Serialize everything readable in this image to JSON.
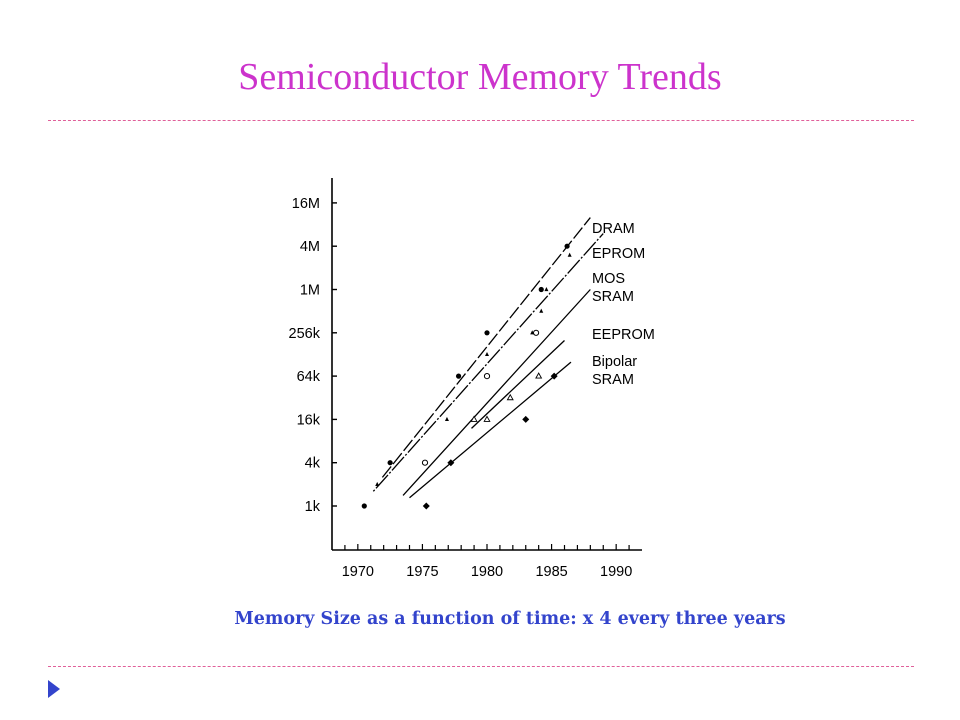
{
  "slide": {
    "title": "Semiconductor Memory Trends",
    "caption": "Memory Size as a function of time: x 4 every three years",
    "accent_color": "#cc33cc",
    "caption_color": "#3344cc",
    "bullet_icon": "triangle-right-icon"
  },
  "chart_data": {
    "type": "scatter",
    "title": "",
    "xlabel": "",
    "ylabel": "",
    "xlim": [
      1968,
      1992
    ],
    "y_scale": "log4",
    "x_ticks": [
      "1970",
      "1975",
      "1980",
      "1985",
      "1990"
    ],
    "y_ticks": [
      "1k",
      "4k",
      "16k",
      "64k",
      "256k",
      "1M",
      "4M",
      "16M"
    ],
    "series": [
      {
        "name": "DRAM",
        "marker": "filled-circle",
        "points": [
          {
            "x": 1970.5,
            "y": "1k"
          },
          {
            "x": 1972.5,
            "y": "4k"
          },
          {
            "x": 1977.8,
            "y": "64k"
          },
          {
            "x": 1980.0,
            "y": "256k"
          },
          {
            "x": 1984.2,
            "y": "1M"
          },
          {
            "x": 1986.2,
            "y": "4M"
          }
        ],
        "trend": [
          {
            "x": 1971.9,
            "y": "2.5k"
          },
          {
            "x": 1988.0,
            "y": "10M"
          }
        ]
      },
      {
        "name": "EPROM",
        "marker": "small-triangle",
        "points": [
          {
            "x": 1971.5,
            "y": "2k"
          },
          {
            "x": 1976.9,
            "y": "16k"
          },
          {
            "x": 1980.0,
            "y": "128k"
          },
          {
            "x": 1983.5,
            "y": "256k"
          },
          {
            "x": 1984.2,
            "y": "512k"
          },
          {
            "x": 1984.6,
            "y": "1M"
          },
          {
            "x": 1986.4,
            "y": "3M"
          }
        ],
        "trend": [
          {
            "x": 1971.2,
            "y": "1.6k"
          },
          {
            "x": 1989.0,
            "y": "6M"
          }
        ]
      },
      {
        "name": "MOS SRAM",
        "marker": "open-circle",
        "points": [
          {
            "x": 1975.2,
            "y": "4k"
          },
          {
            "x": 1980.0,
            "y": "64k"
          },
          {
            "x": 1983.8,
            "y": "256k"
          }
        ],
        "trend": [
          {
            "x": 1973.5,
            "y": "1.4k"
          },
          {
            "x": 1988.0,
            "y": "1M"
          }
        ]
      },
      {
        "name": "EEPROM",
        "marker": "open-triangle",
        "points": [
          {
            "x": 1979.0,
            "y": "16k"
          },
          {
            "x": 1980.0,
            "y": "16k"
          },
          {
            "x": 1981.8,
            "y": "32k"
          },
          {
            "x": 1984.0,
            "y": "64k"
          }
        ],
        "trend": [
          {
            "x": 1978.8,
            "y": "12k"
          },
          {
            "x": 1986.0,
            "y": "200k"
          }
        ]
      },
      {
        "name": "Bipolar SRAM",
        "marker": "filled-diamond",
        "points": [
          {
            "x": 1975.3,
            "y": "1k"
          },
          {
            "x": 1977.2,
            "y": "4k"
          },
          {
            "x": 1983.0,
            "y": "16k"
          },
          {
            "x": 1985.2,
            "y": "64k"
          }
        ],
        "trend": [
          {
            "x": 1974.0,
            "y": "1.3k"
          },
          {
            "x": 1986.5,
            "y": "100k"
          }
        ]
      }
    ],
    "legend": [
      "DRAM",
      "EPROM",
      "MOS",
      "SRAM",
      "EEPROM",
      "Bipolar",
      "SRAM"
    ],
    "legend_placement": "right, beside line ends",
    "grid": false
  }
}
